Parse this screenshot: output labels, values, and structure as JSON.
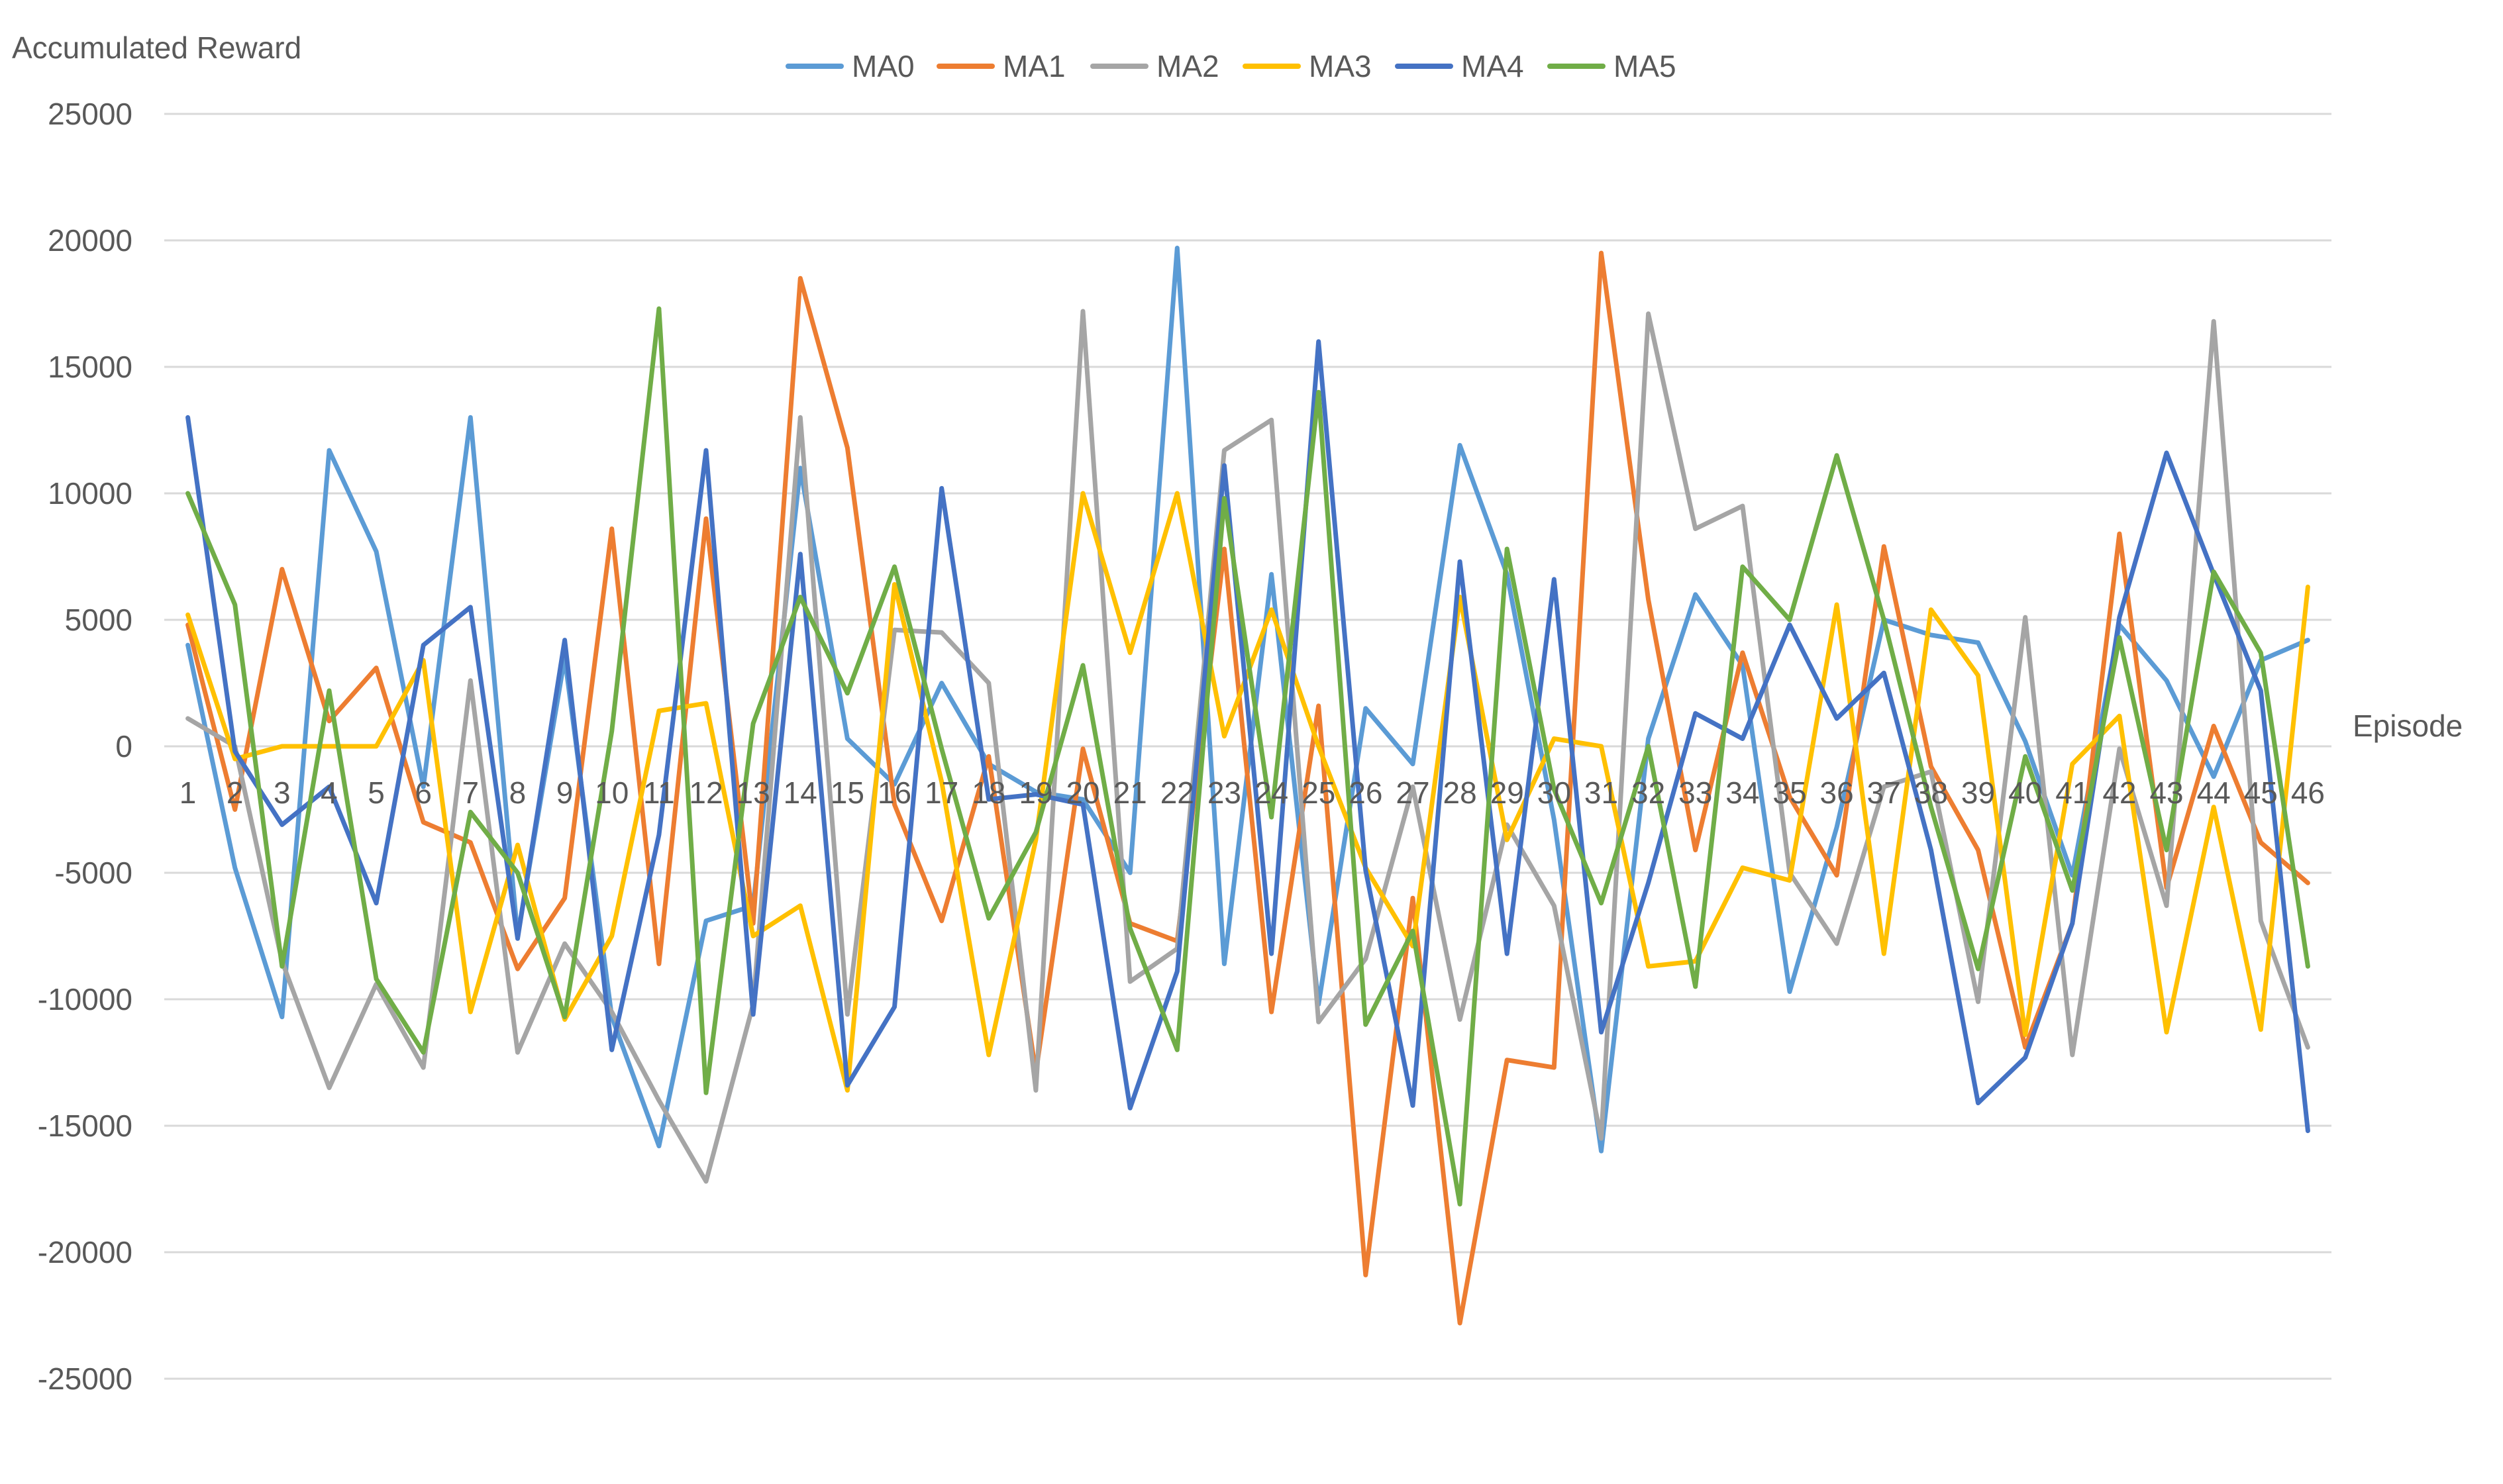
{
  "chart_data": {
    "type": "line",
    "title": "",
    "ylabel": "Accumulated Reward",
    "xlabel": "Episode",
    "ylim": [
      -25000,
      25000
    ],
    "yticks": [
      25000,
      20000,
      15000,
      10000,
      5000,
      0,
      -5000,
      -10000,
      -15000,
      -20000,
      -25000
    ],
    "grid": true,
    "legend": "top-center",
    "categories": [
      "1",
      "2",
      "3",
      "4",
      "5",
      "6",
      "7",
      "8",
      "9",
      "10",
      "11",
      "12",
      "13",
      "14",
      "15",
      "16",
      "17",
      "18",
      "19",
      "20",
      "21",
      "22",
      "23",
      "24",
      "25",
      "26",
      "27",
      "28",
      "29",
      "30",
      "31",
      "32",
      "33",
      "34",
      "35",
      "36",
      "37",
      "38",
      "39",
      "40",
      "41",
      "42",
      "43",
      "44",
      "45",
      "46"
    ],
    "series": [
      {
        "name": "MA0",
        "color": "#5B9BD5",
        "values": [
          4000,
          -4800,
          -10700,
          11700,
          7700,
          -1600,
          13000,
          -7500,
          3500,
          -10700,
          -15800,
          -6900,
          -6300,
          11000,
          300,
          -1500,
          2500,
          -700,
          -1800,
          -2100,
          -5000,
          19700,
          -8600,
          6800,
          -10200,
          1500,
          -700,
          11900,
          6800,
          -2900,
          -16000,
          300,
          6000,
          3200,
          -9700,
          -3200,
          5000,
          4400,
          4100,
          200,
          -5100,
          4800,
          2600,
          -1200,
          3400,
          4200
        ]
      },
      {
        "name": "MA1",
        "color": "#ED7D31",
        "values": [
          4800,
          -2500,
          7000,
          1000,
          3100,
          -3000,
          -3800,
          -8800,
          -6000,
          8600,
          -8600,
          9000,
          -7000,
          18500,
          11800,
          -2300,
          -6900,
          -400,
          -12900,
          -100,
          -7000,
          -7700,
          7800,
          -10500,
          1600,
          -20900,
          -6000,
          -22800,
          -12400,
          -12700,
          19500,
          5800,
          -4100,
          3700,
          -2000,
          -5100,
          7900,
          -800,
          -4100,
          -11900,
          -7000,
          8400,
          -5600,
          800,
          -3800,
          -5400
        ]
      },
      {
        "name": "MA2",
        "color": "#A5A5A5",
        "values": [
          1100,
          0,
          -8500,
          -13500,
          -9400,
          -12700,
          2600,
          -12100,
          -7800,
          -10500,
          -14000,
          -17200,
          -10200,
          13000,
          -10600,
          4600,
          4500,
          2500,
          -13600,
          17200,
          -9300,
          -8000,
          11700,
          12900,
          -10900,
          -8400,
          -1600,
          -10800,
          -3100,
          -6300,
          -15500,
          17100,
          8600,
          9500,
          -5000,
          -7800,
          -1600,
          -1000,
          -10100,
          5100,
          -12200,
          -100,
          -6300,
          16800,
          -6900,
          -11900
        ]
      },
      {
        "name": "MA3",
        "color": "#FFC000",
        "values": [
          5200,
          -500,
          0,
          0,
          0,
          3400,
          -10500,
          -3900,
          -10800,
          -7500,
          1400,
          1700,
          -7500,
          -6300,
          -13600,
          6400,
          -1400,
          -12200,
          -3700,
          10000,
          3700,
          10000,
          400,
          5400,
          0,
          -4800,
          -7900,
          5900,
          -3700,
          300,
          0,
          -8700,
          -8500,
          -4800,
          -5300,
          5600,
          -8200,
          5400,
          2800,
          -11400,
          -700,
          1200,
          -11300,
          -2400,
          -11200,
          6300
        ]
      },
      {
        "name": "MA4",
        "color": "#4472C4",
        "values": [
          13000,
          -200,
          -3100,
          -1600,
          -6200,
          4000,
          5500,
          -7600,
          4200,
          -12000,
          -3500,
          11700,
          -10600,
          7600,
          -13400,
          -10300,
          10200,
          -2100,
          -1900,
          -2300,
          -14300,
          -8900,
          11100,
          -8200,
          16000,
          -4900,
          -14200,
          7300,
          -8200,
          6600,
          -11300,
          -5400,
          1300,
          300,
          4800,
          1100,
          2900,
          -4100,
          -14100,
          -12300,
          -7000,
          5100,
          11600,
          6800,
          2200,
          -15200
        ]
      },
      {
        "name": "MA5",
        "color": "#70AD47",
        "values": [
          10000,
          5600,
          -8700,
          2200,
          -9200,
          -12100,
          -2600,
          -5000,
          -10700,
          600,
          17300,
          -13700,
          900,
          5900,
          2100,
          7100,
          -100,
          -6800,
          -3400,
          3200,
          -7200,
          -12000,
          9800,
          -2800,
          14000,
          -11000,
          -7300,
          -18100,
          7800,
          -1700,
          -6200,
          0,
          -9500,
          7100,
          5000,
          11500,
          5000,
          -2400,
          -8800,
          -400,
          -5700,
          4300,
          -4100,
          6900,
          3700,
          -8700
        ]
      }
    ]
  }
}
